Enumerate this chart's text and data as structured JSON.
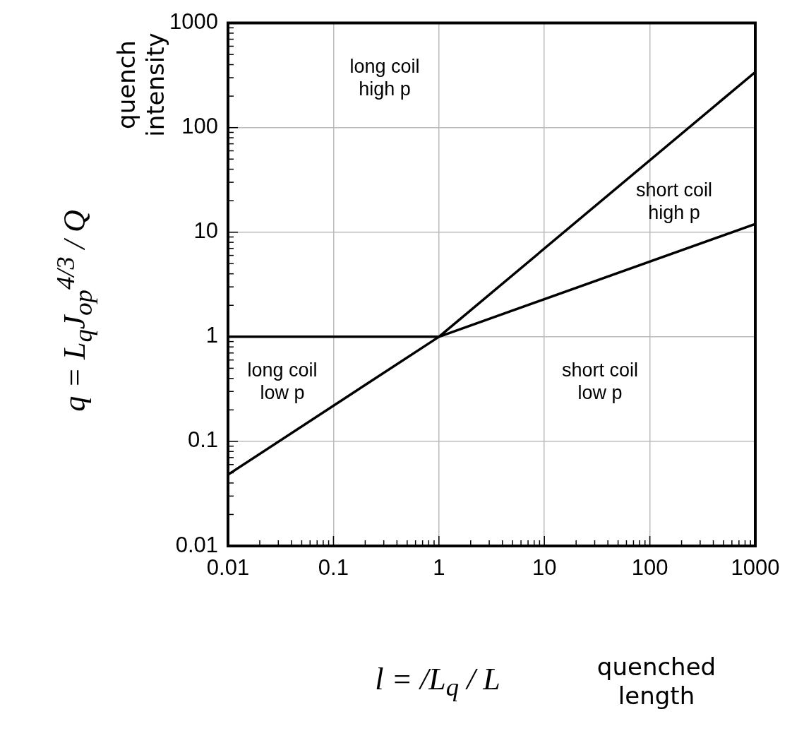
{
  "chart_data": {
    "type": "line",
    "xlabel": "quenched length",
    "ylabel": "quench intensity",
    "annotations": [
      "q = L$_{q}$J$_{op}$$^{4/3}$ / Q",
      "l = /L$_{q}$ / L",
      "long coil\nhigh p",
      "short coil\nhigh p",
      "long coil\nlow p",
      "short coil\nlow p"
    ],
    "series": [
      {
        "color": "#000000",
        "x": [
          0.01,
          1,
          1000
        ],
        "values": [
          1,
          1,
          12
        ]
      },
      {
        "color": "#000000",
        "x": [
          0.01,
          1,
          1000
        ],
        "values": [
          0.048,
          1,
          340
        ]
      }
    ],
    "log": "xy",
    "xlim": [
      0.01,
      1000
    ],
    "ylim": [
      0.01,
      1000
    ],
    "xticks": [
      0.01,
      0.1,
      1,
      10,
      100,
      1000
    ],
    "yticks": [
      0.01,
      0.1,
      1,
      10,
      100,
      1000
    ],
    "grid": true,
    "legend": false,
    "marker": "none",
    "line_style": "solid"
  }
}
